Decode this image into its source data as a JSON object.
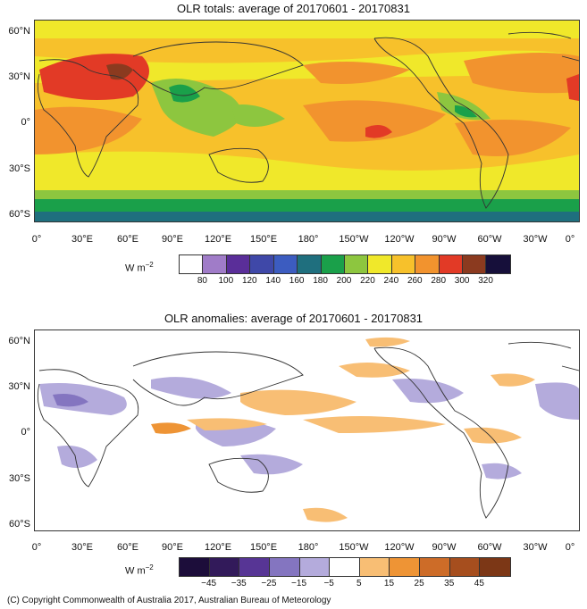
{
  "top": {
    "title": "OLR totals: average of 20170601 - 20170831",
    "lat_labels": [
      "60°N",
      "30°N",
      "0°",
      "30°S",
      "60°S"
    ],
    "lon_labels": [
      "0°",
      "30°E",
      "60°E",
      "90°E",
      "120°E",
      "150°E",
      "180°",
      "150°W",
      "120°W",
      "90°W",
      "60°W",
      "30°W",
      "0°"
    ],
    "unit": "W m",
    "unit_exp": "−2",
    "colorbar_colors": [
      "#ffffff",
      "#a07cc8",
      "#5a2e99",
      "#3f48a8",
      "#3c5cc0",
      "#1f6f7e",
      "#1aa04a",
      "#8dc63f",
      "#f0e82a",
      "#f7c12b",
      "#f2932e",
      "#e23a26",
      "#8b3a1f",
      "#160f3a"
    ],
    "colorbar_ticks": [
      "80",
      "100",
      "120",
      "140",
      "160",
      "180",
      "200",
      "220",
      "240",
      "260",
      "280",
      "300",
      "320"
    ]
  },
  "bottom": {
    "title": "OLR anomalies: average of 20170601 - 20170831",
    "lat_labels": [
      "60°N",
      "30°N",
      "0°",
      "30°S",
      "60°S"
    ],
    "lon_labels": [
      "0°",
      "30°E",
      "60°E",
      "90°E",
      "120°E",
      "150°E",
      "180°",
      "150°W",
      "120°W",
      "90°W",
      "60°W",
      "30°W",
      "0°"
    ],
    "unit": "W m",
    "unit_exp": "−2",
    "colorbar_colors": [
      "#1c0d3a",
      "#321a5a",
      "#573595",
      "#8475c0",
      "#b4abdc",
      "#ffffff",
      "#f8be74",
      "#ee9435",
      "#cd6c28",
      "#a64e1e",
      "#7c3716"
    ],
    "colorbar_ticks": [
      "−45",
      "−35",
      "−25",
      "−15",
      "−5",
      "5",
      "15",
      "25",
      "35",
      "45"
    ]
  },
  "footer": "(C) Copyright Commonwealth of Australia 2017, Australian Bureau of Meteorology"
}
